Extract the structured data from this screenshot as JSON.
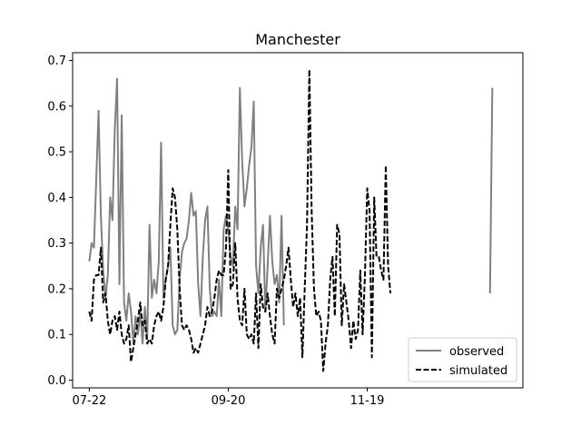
{
  "chart_data": {
    "type": "line",
    "title": "Manchester",
    "xlabel": "",
    "ylabel": "",
    "x_ticks": [
      {
        "label": "07-22",
        "day": 0
      },
      {
        "label": "09-20",
        "day": 60
      },
      {
        "label": "11-19",
        "day": 120
      }
    ],
    "xlim": [
      -7.2,
      187.2
    ],
    "ylim": [
      -0.017,
      0.717
    ],
    "y_ticks": [
      0.0,
      0.1,
      0.2,
      0.3,
      0.4,
      0.5,
      0.6,
      0.7
    ],
    "grid": false,
    "legend_position": "lower-right",
    "series": [
      {
        "name": "observed",
        "color": "#808080",
        "style": "solid",
        "segments": [
          [
            [
              0,
              0.26
            ],
            [
              1,
              0.3
            ],
            [
              2,
              0.29
            ],
            [
              3,
              0.44
            ],
            [
              4,
              0.59
            ],
            [
              5,
              0.36
            ],
            [
              6,
              0.24
            ],
            [
              7,
              0.18
            ],
            [
              8,
              0.23
            ],
            [
              9,
              0.4
            ],
            [
              10,
              0.35
            ],
            [
              11,
              0.55
            ],
            [
              12,
              0.66
            ],
            [
              13,
              0.21
            ],
            [
              14,
              0.58
            ],
            [
              15,
              0.17
            ],
            [
              16,
              0.13
            ],
            [
              17,
              0.19
            ],
            [
              18,
              0.15
            ],
            [
              19,
              0.08
            ],
            [
              20,
              0.14
            ],
            [
              21,
              0.1
            ],
            [
              22,
              0.15
            ],
            [
              23,
              0.08
            ],
            [
              24,
              0.16
            ],
            [
              25,
              0.09
            ],
            [
              26,
              0.34
            ],
            [
              27,
              0.18
            ],
            [
              28,
              0.22
            ],
            [
              29,
              0.19
            ],
            [
              30,
              0.26
            ],
            [
              31,
              0.52
            ],
            [
              32,
              0.18
            ],
            [
              33,
              0.22
            ],
            [
              34,
              0.25
            ],
            [
              35,
              0.29
            ],
            [
              36,
              0.12
            ],
            [
              37,
              0.1
            ],
            [
              38,
              0.11
            ],
            [
              39,
              0.22
            ],
            [
              40,
              0.28
            ],
            [
              41,
              0.3
            ],
            [
              42,
              0.31
            ],
            [
              43,
              0.35
            ],
            [
              44,
              0.41
            ],
            [
              45,
              0.36
            ],
            [
              46,
              0.37
            ],
            [
              47,
              0.21
            ],
            [
              48,
              0.14
            ],
            [
              49,
              0.27
            ],
            [
              50,
              0.35
            ],
            [
              51,
              0.38
            ],
            [
              52,
              0.2
            ],
            [
              53,
              0.14
            ],
            [
              54,
              0.15
            ],
            [
              55,
              0.14
            ],
            [
              56,
              0.22
            ],
            [
              57,
              0.14
            ],
            [
              58,
              0.33
            ],
            [
              59,
              0.36
            ],
            [
              60,
              0.33
            ],
            [
              61,
              0.27
            ],
            [
              62,
              0.25
            ],
            [
              63,
              0.38
            ],
            [
              64,
              0.33
            ],
            [
              65,
              0.64
            ],
            [
              66,
              0.48
            ],
            [
              67,
              0.38
            ],
            [
              68,
              0.42
            ],
            [
              69,
              0.47
            ],
            [
              70,
              0.51
            ],
            [
              71,
              0.61
            ],
            [
              72,
              0.25
            ],
            [
              73,
              0.19
            ],
            [
              74,
              0.29
            ],
            [
              75,
              0.34
            ],
            [
              76,
              0.15
            ],
            [
              77,
              0.25
            ],
            [
              78,
              0.36
            ],
            [
              79,
              0.26
            ],
            [
              80,
              0.21
            ],
            [
              81,
              0.23
            ],
            [
              82,
              0.17
            ],
            [
              83,
              0.36
            ],
            [
              84,
              0.12
            ]
          ],
          [
            [
              173,
              0.19
            ],
            [
              174,
              0.64
            ]
          ]
        ]
      },
      {
        "name": "simulated",
        "color": "#000000",
        "style": "dashed",
        "segments": [
          [
            [
              0,
              0.15
            ],
            [
              1,
              0.13
            ],
            [
              2,
              0.22
            ],
            [
              3,
              0.23
            ],
            [
              4,
              0.23
            ],
            [
              5,
              0.29
            ],
            [
              6,
              0.17
            ],
            [
              7,
              0.19
            ],
            [
              8,
              0.13
            ],
            [
              9,
              0.1
            ],
            [
              10,
              0.13
            ],
            [
              11,
              0.14
            ],
            [
              12,
              0.11
            ],
            [
              13,
              0.15
            ],
            [
              14,
              0.1
            ],
            [
              15,
              0.08
            ],
            [
              16,
              0.09
            ],
            [
              17,
              0.12
            ],
            [
              18,
              0.04
            ],
            [
              19,
              0.07
            ],
            [
              20,
              0.1
            ],
            [
              21,
              0.13
            ],
            [
              22,
              0.17
            ],
            [
              23,
              0.12
            ],
            [
              24,
              0.13
            ],
            [
              25,
              0.08
            ],
            [
              26,
              0.09
            ],
            [
              27,
              0.08
            ],
            [
              28,
              0.12
            ],
            [
              29,
              0.14
            ],
            [
              30,
              0.15
            ],
            [
              31,
              0.13
            ],
            [
              32,
              0.16
            ],
            [
              33,
              0.22
            ],
            [
              34,
              0.25
            ],
            [
              35,
              0.34
            ],
            [
              36,
              0.42
            ],
            [
              37,
              0.4
            ],
            [
              38,
              0.33
            ],
            [
              39,
              0.2
            ],
            [
              40,
              0.12
            ],
            [
              41,
              0.11
            ],
            [
              42,
              0.12
            ],
            [
              43,
              0.11
            ],
            [
              44,
              0.09
            ],
            [
              45,
              0.06
            ],
            [
              46,
              0.07
            ],
            [
              47,
              0.06
            ],
            [
              48,
              0.08
            ],
            [
              49,
              0.1
            ],
            [
              50,
              0.12
            ],
            [
              51,
              0.16
            ],
            [
              52,
              0.14
            ],
            [
              53,
              0.15
            ],
            [
              54,
              0.18
            ],
            [
              55,
              0.22
            ],
            [
              56,
              0.24
            ],
            [
              57,
              0.23
            ],
            [
              58,
              0.23
            ],
            [
              59,
              0.29
            ],
            [
              60,
              0.46
            ],
            [
              61,
              0.2
            ],
            [
              62,
              0.21
            ],
            [
              63,
              0.3
            ],
            [
              64,
              0.18
            ],
            [
              65,
              0.13
            ],
            [
              66,
              0.12
            ],
            [
              67,
              0.2
            ],
            [
              68,
              0.1
            ],
            [
              69,
              0.09
            ],
            [
              70,
              0.1
            ],
            [
              71,
              0.08
            ],
            [
              72,
              0.19
            ],
            [
              73,
              0.07
            ],
            [
              74,
              0.21
            ],
            [
              75,
              0.16
            ],
            [
              76,
              0.15
            ],
            [
              77,
              0.19
            ],
            [
              78,
              0.14
            ],
            [
              79,
              0.1
            ],
            [
              80,
              0.08
            ],
            [
              81,
              0.2
            ],
            [
              82,
              0.18
            ],
            [
              83,
              0.2
            ],
            [
              84,
              0.22
            ],
            [
              85,
              0.25
            ],
            [
              86,
              0.29
            ],
            [
              87,
              0.22
            ],
            [
              88,
              0.16
            ],
            [
              89,
              0.19
            ],
            [
              90,
              0.14
            ],
            [
              91,
              0.18
            ],
            [
              92,
              0.05
            ],
            [
              93,
              0.2
            ],
            [
              94,
              0.34
            ],
            [
              95,
              0.68
            ],
            [
              96,
              0.37
            ],
            [
              97,
              0.2
            ],
            [
              98,
              0.14
            ],
            [
              99,
              0.15
            ],
            [
              100,
              0.13
            ],
            [
              101,
              0.02
            ],
            [
              102,
              0.08
            ],
            [
              103,
              0.12
            ],
            [
              104,
              0.22
            ],
            [
              105,
              0.27
            ],
            [
              106,
              0.14
            ],
            [
              107,
              0.34
            ],
            [
              108,
              0.32
            ],
            [
              109,
              0.12
            ],
            [
              110,
              0.21
            ],
            [
              111,
              0.17
            ],
            [
              112,
              0.13
            ],
            [
              113,
              0.07
            ],
            [
              114,
              0.13
            ],
            [
              115,
              0.09
            ],
            [
              116,
              0.11
            ],
            [
              117,
              0.24
            ],
            [
              118,
              0.1
            ],
            [
              119,
              0.23
            ],
            [
              120,
              0.42
            ],
            [
              121,
              0.37
            ],
            [
              122,
              0.05
            ],
            [
              123,
              0.4
            ],
            [
              124,
              0.27
            ],
            [
              125,
              0.27
            ],
            [
              126,
              0.24
            ],
            [
              127,
              0.22
            ],
            [
              128,
              0.47
            ],
            [
              129,
              0.25
            ],
            [
              130,
              0.19
            ]
          ]
        ]
      }
    ]
  }
}
